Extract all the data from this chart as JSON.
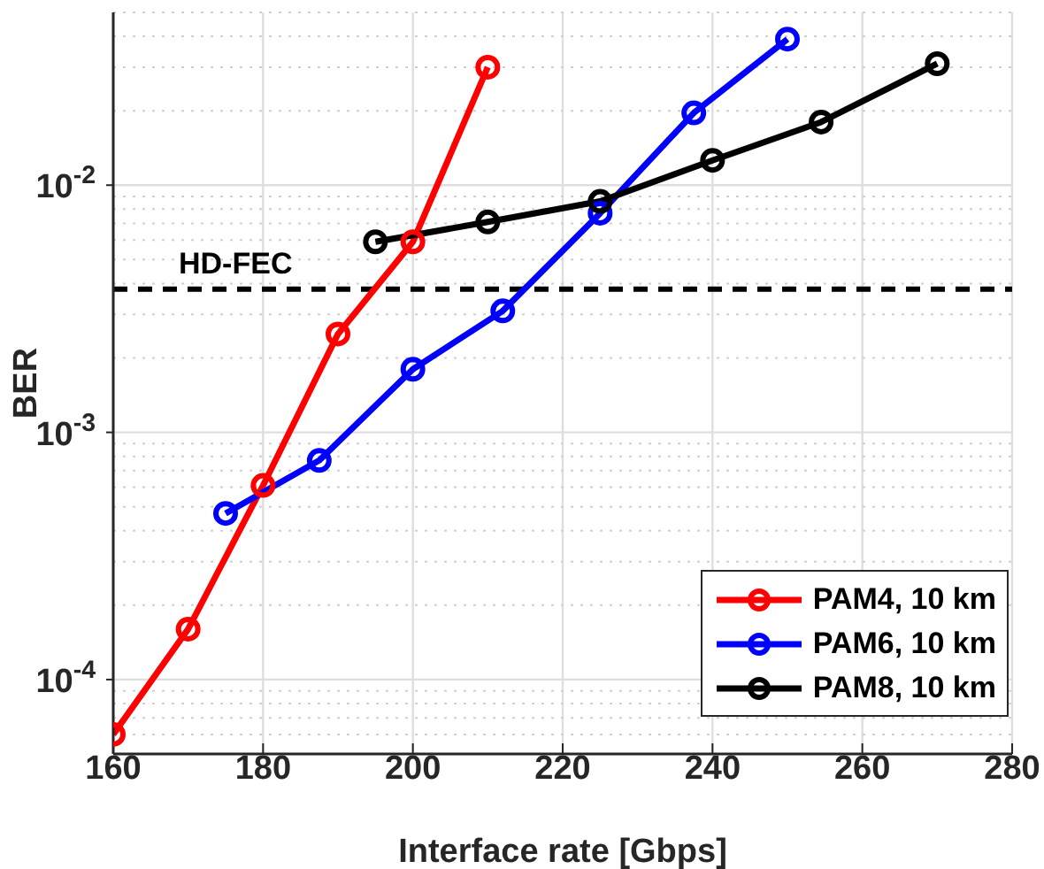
{
  "chart_data": {
    "type": "line",
    "xlabel": "Interface rate [Gbps]",
    "ylabel": "BER",
    "log": "y",
    "grid": true,
    "legend": "bottom right",
    "marker": "circle",
    "line_style": "solid",
    "xlim": [
      160,
      280
    ],
    "xticks": [
      160,
      180,
      200,
      220,
      240,
      260,
      280
    ],
    "ylim": [
      5e-05,
      0.05
    ],
    "yticks": [
      {
        "value": 5e-05,
        "label": null
      },
      {
        "value": 6e-05,
        "label": null
      },
      {
        "value": 7e-05,
        "label": null
      },
      {
        "value": 8e-05,
        "label": null
      },
      {
        "value": 9e-05,
        "label": null
      },
      {
        "value": 0.0001,
        "label": "10$^{-4}$"
      },
      {
        "value": 0.0002,
        "label": null
      },
      {
        "value": 0.0003,
        "label": null
      },
      {
        "value": 0.0004,
        "label": null
      },
      {
        "value": 0.0005,
        "label": null
      },
      {
        "value": 0.0006,
        "label": null
      },
      {
        "value": 0.0007,
        "label": null
      },
      {
        "value": 0.0008,
        "label": null
      },
      {
        "value": 0.0009,
        "label": null
      },
      {
        "value": 0.001,
        "label": "10$^{-3}$"
      },
      {
        "value": 0.002,
        "label": null
      },
      {
        "value": 0.003,
        "label": null
      },
      {
        "value": 0.004,
        "label": null
      },
      {
        "value": 0.005,
        "label": null
      },
      {
        "value": 0.006,
        "label": null
      },
      {
        "value": 0.007,
        "label": null
      },
      {
        "value": 0.008,
        "label": null
      },
      {
        "value": 0.009,
        "label": null
      },
      {
        "value": 0.01,
        "label": "10$^{-2}$"
      },
      {
        "value": 0.02,
        "label": null
      },
      {
        "value": 0.03,
        "label": null
      },
      {
        "value": 0.04,
        "label": null
      },
      {
        "value": 0.05,
        "label": null
      }
    ],
    "ref_lines": [
      {
        "axis": "y",
        "value": 0.0038,
        "label": "HD-FEC",
        "color": "#000000",
        "line_style": "dashed"
      }
    ],
    "series": [
      {
        "name": "PAM4, 10 km",
        "color": "#ff0000",
        "x": [
          160,
          170,
          180,
          190,
          200,
          210
        ],
        "values": [
          6e-05,
          0.00016,
          0.00061,
          0.0025,
          0.0059,
          0.03
        ]
      },
      {
        "name": "PAM6, 10 km",
        "color": "#0000ff",
        "x": [
          175,
          187.5,
          200,
          212,
          225,
          237.5,
          250
        ],
        "values": [
          0.00047,
          0.00077,
          0.0018,
          0.0031,
          0.0077,
          0.0196,
          0.039
        ]
      },
      {
        "name": "PAM8, 10 km",
        "color": "#000000",
        "x": [
          195,
          210,
          225,
          240,
          254.5,
          270
        ],
        "values": [
          0.0059,
          0.0071,
          0.0086,
          0.0126,
          0.018,
          0.031
        ]
      }
    ]
  }
}
